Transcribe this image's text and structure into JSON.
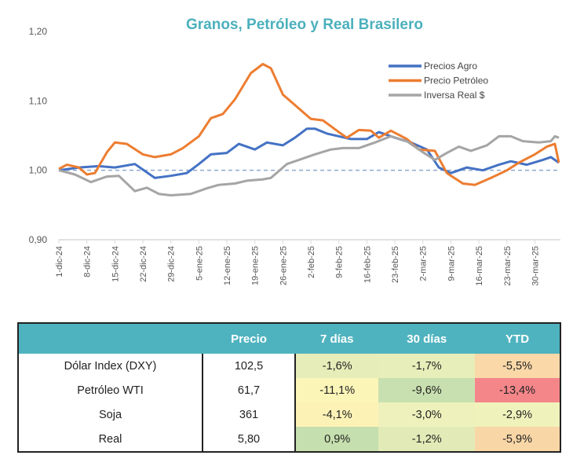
{
  "chart_data": {
    "type": "line",
    "title": "Granos, Petróleo y Real Brasilero",
    "ylim": [
      0.9,
      1.2
    ],
    "yticks": [
      "1,20",
      "1,10",
      "1,00",
      "0,90"
    ],
    "ytick_values": [
      1.2,
      1.1,
      1.0,
      0.9
    ],
    "xlim": [
      "2024-12-01",
      "2025-04-05"
    ],
    "xticks": [
      "1-dic-24",
      "8-dic-24",
      "15-dic-24",
      "22-dic-24",
      "29-dic-24",
      "5-ene-25",
      "12-ene-25",
      "19-ene-25",
      "26-ene-25",
      "2-feb-25",
      "9-feb-25",
      "16-feb-25",
      "23-feb-25",
      "2-mar-25",
      "9-mar-25",
      "16-mar-25",
      "23-mar-25",
      "30-mar-25"
    ],
    "xtick_dates": [
      "2024-12-01",
      "2024-12-08",
      "2024-12-15",
      "2024-12-22",
      "2024-12-29",
      "2025-01-05",
      "2025-01-12",
      "2025-01-19",
      "2025-01-26",
      "2025-02-02",
      "2025-02-09",
      "2025-02-16",
      "2025-02-23",
      "2025-03-02",
      "2025-03-09",
      "2025-03-16",
      "2025-03-23",
      "2025-03-30"
    ],
    "reference_line": 1.0,
    "grid": false,
    "legend_position": "top-right",
    "series": [
      {
        "name": "Precios Agro",
        "color": "#4472C4",
        "points": [
          [
            "2024-12-01",
            1.0
          ],
          [
            "2024-12-06",
            1.004
          ],
          [
            "2024-12-11",
            1.006
          ],
          [
            "2024-12-15",
            1.004
          ],
          [
            "2024-12-20",
            1.009
          ],
          [
            "2024-12-25",
            0.989
          ],
          [
            "2024-12-29",
            0.992
          ],
          [
            "2025-01-02",
            0.996
          ],
          [
            "2025-01-05",
            1.009
          ],
          [
            "2025-01-08",
            1.023
          ],
          [
            "2025-01-12",
            1.025
          ],
          [
            "2025-01-15",
            1.038
          ],
          [
            "2025-01-19",
            1.03
          ],
          [
            "2025-01-22",
            1.04
          ],
          [
            "2025-01-26",
            1.036
          ],
          [
            "2025-01-29",
            1.047
          ],
          [
            "2025-02-01",
            1.06
          ],
          [
            "2025-02-03",
            1.06
          ],
          [
            "2025-02-06",
            1.053
          ],
          [
            "2025-02-09",
            1.049
          ],
          [
            "2025-02-12",
            1.045
          ],
          [
            "2025-02-16",
            1.045
          ],
          [
            "2025-02-19",
            1.055
          ],
          [
            "2025-02-23",
            1.047
          ],
          [
            "2025-02-27",
            1.04
          ],
          [
            "2025-03-03",
            1.03
          ],
          [
            "2025-03-06",
            1.004
          ],
          [
            "2025-03-09",
            0.996
          ],
          [
            "2025-03-13",
            1.004
          ],
          [
            "2025-03-17",
            1.0
          ],
          [
            "2025-03-21",
            1.008
          ],
          [
            "2025-03-24",
            1.013
          ],
          [
            "2025-03-28",
            1.008
          ],
          [
            "2025-04-01",
            1.015
          ],
          [
            "2025-04-03",
            1.019
          ],
          [
            "2025-04-05",
            1.011
          ]
        ]
      },
      {
        "name": "Precio Petróleo",
        "color": "#ED7D31",
        "points": [
          [
            "2024-12-01",
            1.002
          ],
          [
            "2024-12-03",
            1.008
          ],
          [
            "2024-12-06",
            1.004
          ],
          [
            "2024-12-08",
            0.994
          ],
          [
            "2024-12-10",
            0.996
          ],
          [
            "2024-12-13",
            1.026
          ],
          [
            "2024-12-15",
            1.04
          ],
          [
            "2024-12-18",
            1.038
          ],
          [
            "2024-12-22",
            1.023
          ],
          [
            "2024-12-25",
            1.019
          ],
          [
            "2024-12-29",
            1.023
          ],
          [
            "2025-01-01",
            1.032
          ],
          [
            "2025-01-05",
            1.049
          ],
          [
            "2025-01-08",
            1.075
          ],
          [
            "2025-01-11",
            1.081
          ],
          [
            "2025-01-14",
            1.102
          ],
          [
            "2025-01-18",
            1.14
          ],
          [
            "2025-01-21",
            1.153
          ],
          [
            "2025-01-23",
            1.147
          ],
          [
            "2025-01-26",
            1.109
          ],
          [
            "2025-01-29",
            1.094
          ],
          [
            "2025-02-02",
            1.074
          ],
          [
            "2025-02-05",
            1.072
          ],
          [
            "2025-02-09",
            1.055
          ],
          [
            "2025-02-11",
            1.047
          ],
          [
            "2025-02-14",
            1.058
          ],
          [
            "2025-02-17",
            1.057
          ],
          [
            "2025-02-19",
            1.047
          ],
          [
            "2025-02-22",
            1.057
          ],
          [
            "2025-02-26",
            1.045
          ],
          [
            "2025-03-01",
            1.03
          ],
          [
            "2025-03-05",
            1.028
          ],
          [
            "2025-03-08",
            0.996
          ],
          [
            "2025-03-12",
            0.981
          ],
          [
            "2025-03-15",
            0.979
          ],
          [
            "2025-03-19",
            0.989
          ],
          [
            "2025-03-23",
            1.0
          ],
          [
            "2025-03-26",
            1.011
          ],
          [
            "2025-03-30",
            1.023
          ],
          [
            "2025-04-02",
            1.034
          ],
          [
            "2025-04-04",
            1.038
          ],
          [
            "2025-04-05",
            1.011
          ]
        ]
      },
      {
        "name": "Inversa Real $",
        "color": "#A5A5A5",
        "points": [
          [
            "2024-12-01",
            1.0
          ],
          [
            "2024-12-05",
            0.994
          ],
          [
            "2024-12-09",
            0.983
          ],
          [
            "2024-12-13",
            0.991
          ],
          [
            "2024-12-16",
            0.992
          ],
          [
            "2024-12-20",
            0.97
          ],
          [
            "2024-12-23",
            0.975
          ],
          [
            "2024-12-26",
            0.966
          ],
          [
            "2024-12-29",
            0.964
          ],
          [
            "2025-01-03",
            0.966
          ],
          [
            "2025-01-07",
            0.974
          ],
          [
            "2025-01-10",
            0.979
          ],
          [
            "2025-01-14",
            0.981
          ],
          [
            "2025-01-17",
            0.985
          ],
          [
            "2025-01-21",
            0.987
          ],
          [
            "2025-01-23",
            0.989
          ],
          [
            "2025-01-27",
            1.009
          ],
          [
            "2025-01-31",
            1.017
          ],
          [
            "2025-02-03",
            1.023
          ],
          [
            "2025-02-07",
            1.03
          ],
          [
            "2025-02-10",
            1.032
          ],
          [
            "2025-02-14",
            1.032
          ],
          [
            "2025-02-18",
            1.04
          ],
          [
            "2025-02-22",
            1.049
          ],
          [
            "2025-02-26",
            1.042
          ],
          [
            "2025-03-02",
            1.026
          ],
          [
            "2025-03-05",
            1.015
          ],
          [
            "2025-03-08",
            1.025
          ],
          [
            "2025-03-11",
            1.034
          ],
          [
            "2025-03-14",
            1.028
          ],
          [
            "2025-03-18",
            1.036
          ],
          [
            "2025-03-21",
            1.049
          ],
          [
            "2025-03-24",
            1.049
          ],
          [
            "2025-03-27",
            1.042
          ],
          [
            "2025-03-31",
            1.04
          ],
          [
            "2025-04-03",
            1.042
          ],
          [
            "2025-04-04",
            1.049
          ],
          [
            "2025-04-05",
            1.047
          ]
        ]
      }
    ]
  },
  "table": {
    "headers": [
      "",
      "Precio",
      "7 días",
      "30 días",
      "YTD"
    ],
    "rows": [
      {
        "name": "Dólar Index (DXY)",
        "precio": "102,5",
        "cells": [
          {
            "v": "-1,6%",
            "color": "#E6EDB8"
          },
          {
            "v": "-1,7%",
            "color": "#E8EEB9"
          },
          {
            "v": "-5,5%",
            "color": "#FAD8A8"
          }
        ]
      },
      {
        "name": "Petróleo WTI",
        "precio": "61,7",
        "cells": [
          {
            "v": "-11,1%",
            "color": "#FCF5B8"
          },
          {
            "v": "-9,6%",
            "color": "#C8E0B0"
          },
          {
            "v": "-13,4%",
            "color": "#F4868A"
          }
        ]
      },
      {
        "name": "Soja",
        "precio": "361",
        "cells": [
          {
            "v": "-4,1%",
            "color": "#FDF2B6"
          },
          {
            "v": "-3,0%",
            "color": "#EEF1BB"
          },
          {
            "v": "-2,9%",
            "color": "#EFF2BB"
          }
        ]
      },
      {
        "name": "Real",
        "precio": "5,80",
        "cells": [
          {
            "v": "0,9%",
            "color": "#C5DFAE"
          },
          {
            "v": "-1,2%",
            "color": "#E2EBB7"
          },
          {
            "v": "-5,9%",
            "color": "#F9D6A6"
          }
        ]
      }
    ]
  }
}
